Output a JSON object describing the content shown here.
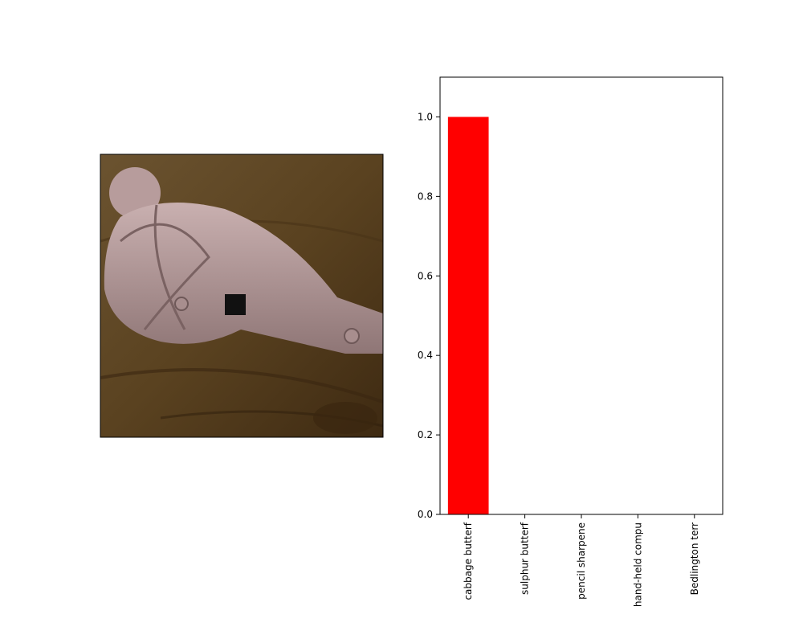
{
  "image_panel": {
    "description_icon": "photo-of-carved-object-on-wooden-table"
  },
  "chart_data": {
    "type": "bar",
    "categories": [
      "cabbage butterf",
      "sulphur butterf",
      "pencil sharpene",
      "hand-held compu",
      "Bedlington terr"
    ],
    "values": [
      1.0,
      0.0,
      0.0,
      0.0,
      0.0
    ],
    "title": "",
    "xlabel": "",
    "ylabel": "",
    "ylim": [
      0,
      1.1
    ],
    "yticks": [
      0.0,
      0.2,
      0.4,
      0.6,
      0.8,
      1.0
    ],
    "ytick_labels": [
      "0.0",
      "0.2",
      "0.4",
      "0.6",
      "0.8",
      "1.0"
    ],
    "bar_color": "#ff0000",
    "grid": false,
    "legend": "none"
  }
}
